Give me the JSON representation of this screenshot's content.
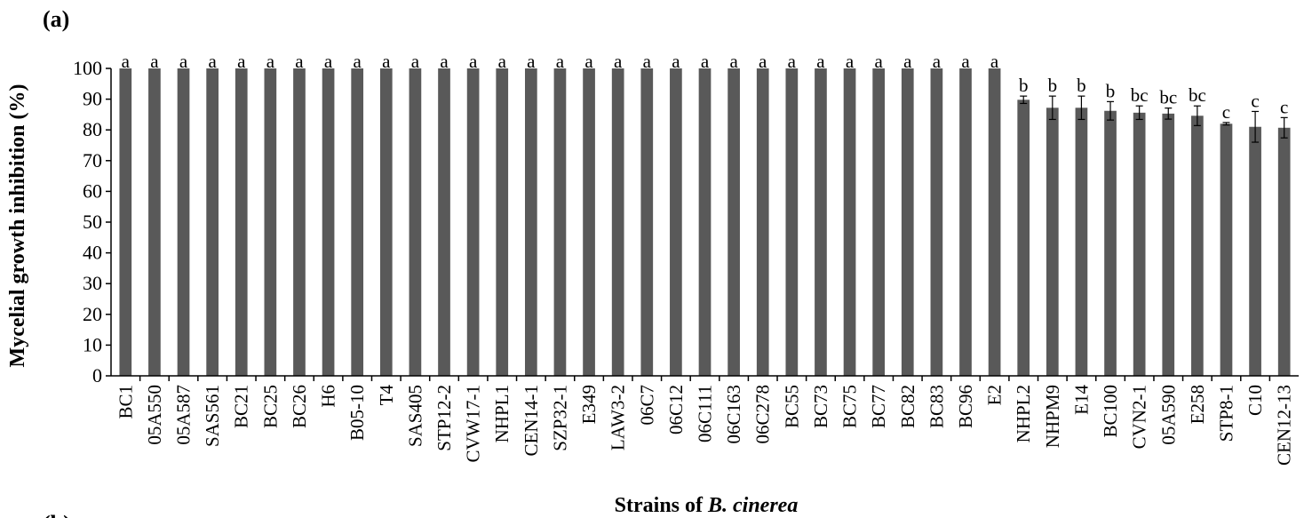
{
  "figure": {
    "panel_label": "(a)",
    "next_panel_label": "(b)"
  },
  "chart_data": {
    "type": "bar",
    "xlabel_prefix": "Strains of ",
    "xlabel_italic": "B. cinerea",
    "ylabel": "Mycelial growth inhibition (%)",
    "ylim": [
      0,
      100
    ],
    "yticks": [
      0,
      10,
      20,
      30,
      40,
      50,
      60,
      70,
      80,
      90,
      100
    ],
    "grid": false,
    "legend": "none",
    "bar_color": "#595959",
    "categories": [
      "BC1",
      "05A550",
      "05A587",
      "SAS561",
      "BC21",
      "BC25",
      "BC26",
      "H6",
      "B05-10",
      "T4",
      "SAS405",
      "STP12-2",
      "CVW17-1",
      "NHPL1",
      "CEN14-1",
      "SZP32-1",
      "E349",
      "LAW3-2",
      "06C7",
      "06C12",
      "06C111",
      "06C163",
      "06C278",
      "BC55",
      "BC73",
      "BC75",
      "BC77",
      "BC82",
      "BC83",
      "BC96",
      "E2",
      "NHPL2",
      "NHPM9",
      "E14",
      "BC100",
      "CVN2-1",
      "05A590",
      "E258",
      "STP8-1",
      "C10",
      "CEN12-13"
    ],
    "values": [
      100,
      100,
      100,
      100,
      100,
      100,
      100,
      100,
      100,
      100,
      100,
      100,
      100,
      100,
      100,
      100,
      100,
      100,
      100,
      100,
      100,
      100,
      100,
      100,
      100,
      100,
      100,
      100,
      100,
      100,
      100,
      89.8,
      87.2,
      87.2,
      86.2,
      85.6,
      85.3,
      84.6,
      82.0,
      81.0,
      80.7
    ],
    "errors": [
      0,
      0,
      0,
      0,
      0,
      0,
      0,
      0,
      0,
      0,
      0,
      0,
      0,
      0,
      0,
      0,
      0,
      0,
      0,
      0,
      0,
      0,
      0,
      0,
      0,
      0,
      0,
      0,
      0,
      0,
      0,
      1.2,
      3.8,
      3.8,
      3.0,
      2.2,
      1.8,
      3.2,
      0.4,
      5.0,
      3.3
    ],
    "significance": [
      "a",
      "a",
      "a",
      "a",
      "a",
      "a",
      "a",
      "a",
      "a",
      "a",
      "a",
      "a",
      "a",
      "a",
      "a",
      "a",
      "a",
      "a",
      "a",
      "a",
      "a",
      "a",
      "a",
      "a",
      "a",
      "a",
      "a",
      "a",
      "a",
      "a",
      "a",
      "b",
      "b",
      "b",
      "b",
      "bc",
      "bc",
      "bc",
      "c",
      "c",
      "c"
    ]
  }
}
